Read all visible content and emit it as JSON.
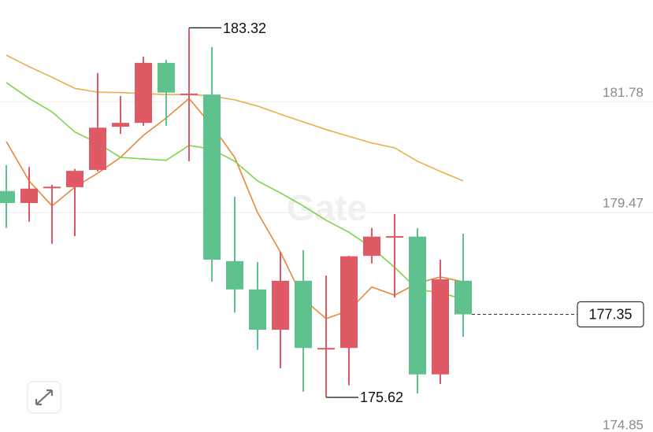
{
  "chart_data": {
    "type": "candlestick",
    "watermark": "Gate",
    "up_color": "#e05a65",
    "down_color": "#5ec18e",
    "ylim": [
      174.85,
      183.9
    ],
    "yticks": [
      174.85,
      179.47,
      181.78
    ],
    "grid": true,
    "open": [
      179.92,
      179.67,
      179.98,
      180.0,
      180.36,
      181.26,
      181.34,
      182.59,
      181.92,
      181.93,
      178.46,
      177.87,
      177.03,
      178.05,
      176.62,
      176.65,
      178.57,
      178.95,
      178.97,
      176.1,
      178.05
    ],
    "high": [
      180.46,
      180.42,
      180.05,
      180.38,
      182.38,
      181.9,
      182.72,
      182.65,
      183.32,
      182.92,
      179.8,
      178.44,
      178.65,
      178.69,
      178.16,
      178.57,
      179.15,
      179.44,
      179.15,
      178.49,
      179.03
    ],
    "low": [
      179.15,
      179.28,
      178.82,
      178.98,
      180.33,
      181.11,
      181.28,
      181.28,
      180.54,
      178.03,
      177.39,
      176.61,
      176.23,
      175.74,
      175.62,
      175.87,
      178.41,
      177.7,
      175.7,
      175.9,
      176.88
    ],
    "close": [
      179.67,
      179.97,
      180.01,
      180.34,
      181.24,
      181.34,
      182.59,
      181.97,
      181.95,
      178.49,
      177.87,
      177.03,
      178.05,
      176.65,
      176.65,
      178.56,
      178.97,
      178.98,
      176.1,
      178.08,
      177.35
    ],
    "lines": [
      {
        "color": "#e8873a",
        "values": [
          180.95,
          180.13,
          179.61,
          180.0,
          180.29,
          180.62,
          181.08,
          181.44,
          181.85,
          181.28,
          180.62,
          179.47,
          178.65,
          177.67,
          177.26,
          177.43,
          177.92,
          177.75,
          178.0,
          178.13,
          178.03
        ]
      },
      {
        "color": "#7fd44a",
        "values": [
          182.18,
          181.85,
          181.57,
          181.15,
          180.92,
          180.62,
          180.59,
          180.56,
          180.87,
          180.79,
          180.54,
          180.13,
          179.88,
          179.61,
          179.31,
          179.06,
          178.74,
          178.33,
          177.87,
          177.8,
          177.67
        ]
      },
      {
        "color": "#e8b04a",
        "values": [
          182.75,
          182.51,
          182.29,
          182.06,
          181.98,
          181.97,
          181.95,
          181.93,
          181.93,
          181.9,
          181.82,
          181.69,
          181.52,
          181.36,
          181.2,
          181.06,
          180.92,
          180.82,
          180.54,
          180.33,
          180.13
        ]
      }
    ]
  }
}
